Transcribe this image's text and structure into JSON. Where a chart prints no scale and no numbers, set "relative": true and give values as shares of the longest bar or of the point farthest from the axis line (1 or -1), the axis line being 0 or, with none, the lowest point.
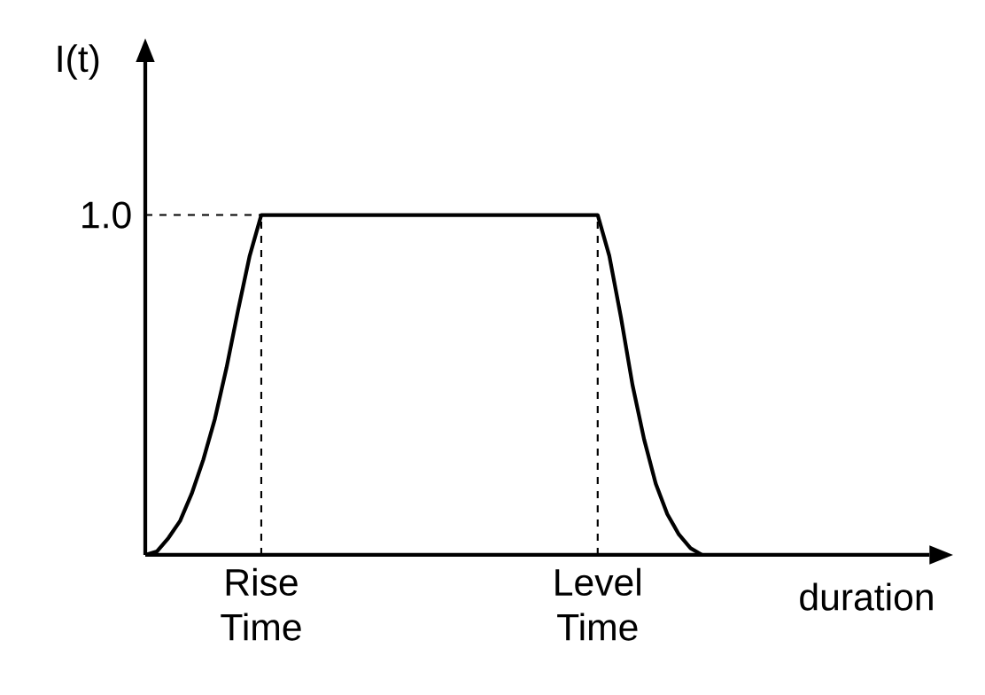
{
  "chart_data": {
    "type": "line",
    "relative": true,
    "xlabel": "duration",
    "ylabel": "I(t)",
    "color": "#000000",
    "categories": [
      null,
      null,
      null,
      null,
      null,
      null,
      null,
      null,
      null,
      null,
      "Rise Time",
      null,
      null,
      null,
      null,
      null,
      null,
      null,
      null,
      null,
      null,
      null,
      null,
      null,
      null,
      null,
      null,
      null,
      null,
      null,
      null,
      null,
      null,
      null,
      null,
      null,
      null,
      null,
      null,
      "Level Time",
      null,
      null,
      null,
      null,
      null,
      null,
      null,
      null,
      null,
      null,
      null,
      null,
      null,
      null,
      null,
      null,
      null,
      null,
      null,
      null,
      null,
      null,
      null,
      null,
      null,
      null,
      null,
      null
    ],
    "values": [
      0,
      0.01,
      0.05,
      0.1,
      0.18,
      0.28,
      0.4,
      0.55,
      0.72,
      0.88,
      1.0,
      1.0,
      1.0,
      1.0,
      1.0,
      1.0,
      1.0,
      1.0,
      1.0,
      1.0,
      1.0,
      1.0,
      1.0,
      1.0,
      1.0,
      1.0,
      1.0,
      1.0,
      1.0,
      1.0,
      1.0,
      1.0,
      1.0,
      1.0,
      1.0,
      1.0,
      1.0,
      1.0,
      1.0,
      1.0,
      0.88,
      0.7,
      0.5,
      0.34,
      0.21,
      0.12,
      0.06,
      0.02,
      0,
      null,
      null,
      null,
      null,
      null,
      null,
      null,
      null,
      null,
      null,
      null,
      null,
      null,
      null,
      null,
      null,
      null,
      null,
      null
    ],
    "annotations": [
      "1.0"
    ],
    "ref_lines": [
      {
        "axis": "y",
        "value": 1.0,
        "line_style": "dashed"
      },
      {
        "axis": "x",
        "value": "Rise Time",
        "line_style": "dashed"
      },
      {
        "axis": "x",
        "value": "Level Time",
        "line_style": "dashed"
      }
    ]
  }
}
